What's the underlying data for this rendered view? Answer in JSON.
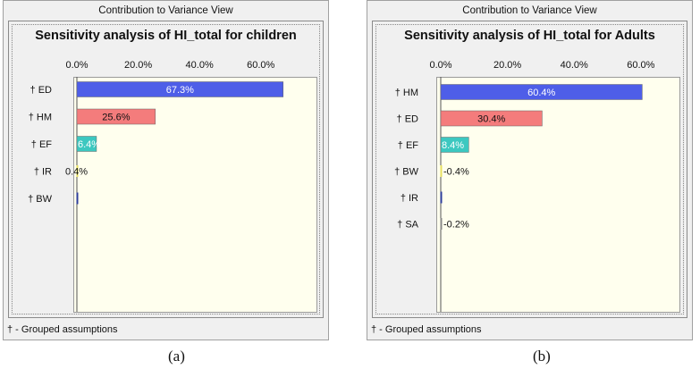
{
  "window_title": "Contribution to Variance View",
  "footer": "† - Grouped assumptions",
  "captions": [
    "(a)",
    "(b)"
  ],
  "colors": {
    "bar_blue": "#4e5ee8",
    "bar_red": "#f47c7c",
    "bar_teal": "#3cc8c0",
    "bar_yellow": "#e8e060",
    "bar_navy": "#2c3c9c",
    "plot_bg": "#ffffee"
  },
  "chart_data": [
    {
      "type": "bar",
      "orientation": "horizontal",
      "title": "Sensitivity analysis of HI_total for children",
      "xlim": [
        0,
        70
      ],
      "ticks": [
        "0.0%",
        "20.0%",
        "40.0%",
        "60.0%"
      ],
      "tick_values": [
        0,
        20,
        40,
        60
      ],
      "categories": [
        "† ED",
        "† HM",
        "† EF",
        "† IR",
        "† BW"
      ],
      "values": [
        67.3,
        25.6,
        6.4,
        0.4,
        0.2
      ],
      "data_labels": [
        "67.3%",
        "25.6%",
        "6.4%",
        "0.4%",
        ""
      ],
      "bar_colors": [
        "#4e5ee8",
        "#f47c7c",
        "#3cc8c0",
        "#e8e060",
        "#2c3c9c"
      ],
      "grid": false
    },
    {
      "type": "bar",
      "orientation": "horizontal",
      "title": "Sensitivity analysis of HI_total for Adults",
      "xlim": [
        0,
        67
      ],
      "ticks": [
        "0.0%",
        "20.0%",
        "40.0%",
        "60.0%"
      ],
      "tick_values": [
        0,
        20,
        40,
        60
      ],
      "categories": [
        "† HM",
        "† ED",
        "† EF",
        "† BW",
        "† IR",
        "† SA"
      ],
      "values": [
        60.4,
        30.4,
        8.4,
        -0.4,
        0.2,
        -0.2
      ],
      "data_labels": [
        "60.4%",
        "30.4%",
        "8.4%",
        "-0.4%",
        "",
        "-0.2%"
      ],
      "bar_colors": [
        "#4e5ee8",
        "#f47c7c",
        "#3cc8c0",
        "#e8e060",
        "#2c3c9c",
        "#888888"
      ],
      "grid": false
    }
  ]
}
